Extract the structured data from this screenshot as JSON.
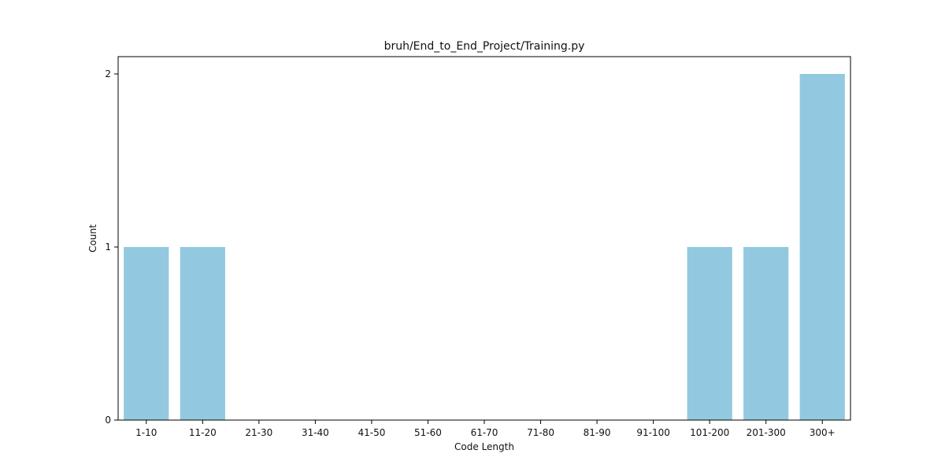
{
  "chart_data": {
    "type": "bar",
    "title": "bruh/End_to_End_Project/Training.py",
    "xlabel": "Code Length",
    "ylabel": "Count",
    "categories": [
      "1-10",
      "11-20",
      "21-30",
      "31-40",
      "41-50",
      "51-60",
      "61-70",
      "71-80",
      "81-90",
      "91-100",
      "101-200",
      "201-300",
      "300+"
    ],
    "values": [
      1,
      1,
      0,
      0,
      0,
      0,
      0,
      0,
      0,
      0,
      1,
      1,
      2
    ],
    "y_ticks": [
      0,
      1,
      2
    ],
    "ylim": [
      0,
      2.1
    ],
    "grid": false,
    "bar_color": "#92c9e0"
  }
}
